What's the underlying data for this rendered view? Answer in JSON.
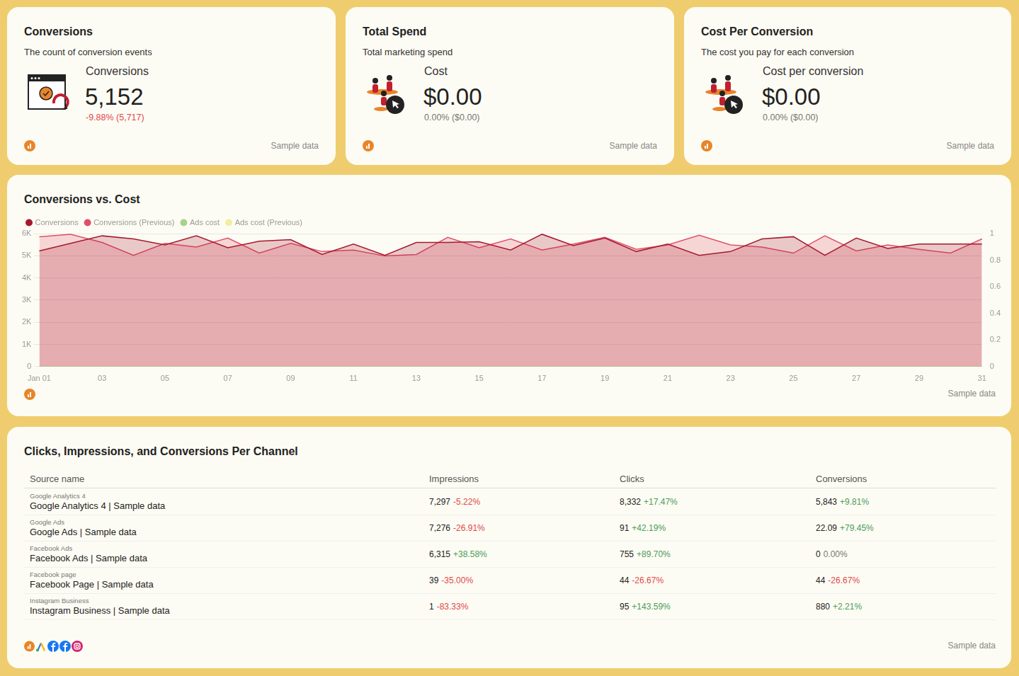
{
  "cards": [
    {
      "title": "Conversions",
      "description": "The count of conversion events",
      "metric_label": "Conversions",
      "value": "5,152",
      "change": "-9.88% (5,717)",
      "footer": "Sample data"
    },
    {
      "title": "Total Spend",
      "description": "Total marketing spend",
      "metric_label": "Cost",
      "value": "$0.00",
      "change": "0.00% ($0.00)",
      "footer": "Sample data"
    },
    {
      "title": "Cost Per Conversion",
      "description": "The cost you pay for each conversion",
      "metric_label": "Cost per conversion",
      "value": "$0.00",
      "change": "0.00% ($0.00)",
      "footer": "Sample data"
    }
  ],
  "chart_panel": {
    "footer": "Sample data"
  },
  "chart_data": {
    "type": "line",
    "title": "Conversions vs. Cost",
    "categories": [
      "Jan 01",
      null,
      "03",
      null,
      "05",
      null,
      "07",
      null,
      "09",
      null,
      "11",
      null,
      "13",
      null,
      "15",
      null,
      "17",
      null,
      "19",
      null,
      "21",
      null,
      "23",
      null,
      "25",
      null,
      "27",
      null,
      "29",
      null,
      "31"
    ],
    "series": [
      {
        "name": "Conversions",
        "color": "#a6192e",
        "type": "area",
        "values": [
          5220,
          5560,
          5900,
          5760,
          5490,
          5900,
          5360,
          5660,
          5730,
          5060,
          5530,
          5020,
          5600,
          5600,
          5630,
          5260,
          5970,
          5460,
          5800,
          5190,
          5530,
          5020,
          5190,
          5760,
          5860,
          5020,
          5800,
          5330,
          5530,
          5530,
          5530
        ]
      },
      {
        "name": "Conversions (Previous)",
        "color": "#e0506a",
        "type": "area",
        "values": [
          5860,
          5970,
          5600,
          5020,
          5560,
          5390,
          5800,
          5120,
          5560,
          5190,
          5260,
          4990,
          5060,
          5830,
          5360,
          5760,
          5260,
          5530,
          5830,
          5290,
          5490,
          5930,
          5490,
          5390,
          5120,
          5900,
          5220,
          5490,
          5290,
          5120,
          5760
        ]
      },
      {
        "name": "Ads cost",
        "color": "#a9d18e",
        "axis": "y2",
        "values": [
          0,
          0,
          0,
          0,
          0,
          0,
          0,
          0,
          0,
          0,
          0,
          0,
          0,
          0,
          0,
          0,
          0,
          0,
          0,
          0,
          0,
          0,
          0,
          0,
          0,
          0,
          0,
          0,
          0,
          0,
          0
        ]
      },
      {
        "name": "Ads cost (Previous)",
        "color": "#f3eea0",
        "axis": "y2",
        "values": [
          0,
          0,
          0,
          0,
          0,
          0,
          0,
          0,
          0,
          0,
          0,
          0,
          0,
          0,
          0,
          0,
          0,
          0,
          0,
          0,
          0,
          0,
          0,
          0,
          0,
          0,
          0,
          0,
          0,
          0,
          0
        ]
      }
    ],
    "ylim": [
      0,
      6000
    ],
    "yticks": [
      0,
      {
        "value": 1000,
        "label": "1K"
      },
      {
        "value": 2000,
        "label": "2K"
      },
      {
        "value": 3000,
        "label": "3K"
      },
      {
        "value": 4000,
        "label": "4K"
      },
      {
        "value": 5000,
        "label": "5K"
      },
      {
        "value": 6000,
        "label": "6K"
      }
    ],
    "y2lim": [
      0,
      1
    ],
    "y2ticks": [
      0,
      0.2,
      0.4,
      0.6,
      0.8,
      1
    ],
    "grid": true,
    "legend": "top-left"
  },
  "table": {
    "title": "Clicks, Impressions, and Conversions Per Channel",
    "columns": [
      "Source name",
      "Impressions",
      "Clicks",
      "Conversions"
    ],
    "rows": [
      {
        "source_type": "Google Analytics 4",
        "source_name": "Google Analytics 4 | Sample data",
        "impressions": "7,297",
        "impressions_change": "-5.22%",
        "clicks": "8,332",
        "clicks_change": "+17.47%",
        "conversions": "5,843",
        "conversions_change": "+9.81%"
      },
      {
        "source_type": "Google Ads",
        "source_name": "Google Ads | Sample data",
        "impressions": "7,276",
        "impressions_change": "-26.91%",
        "clicks": "91",
        "clicks_change": "+42.19%",
        "conversions": "22.09",
        "conversions_change": "+79.45%"
      },
      {
        "source_type": "Facebook Ads",
        "source_name": "Facebook Ads | Sample data",
        "impressions": "6,315",
        "impressions_change": "+38.58%",
        "clicks": "755",
        "clicks_change": "+89.70%",
        "conversions": "0",
        "conversions_change": "0.00%"
      },
      {
        "source_type": "Facebook page",
        "source_name": "Facebook Page | Sample data",
        "impressions": "39",
        "impressions_change": "-35.00%",
        "clicks": "44",
        "clicks_change": "-26.67%",
        "conversions": "44",
        "conversions_change": "-26.67%"
      },
      {
        "source_type": "Instagram Business",
        "source_name": "Instagram Business | Sample data",
        "impressions": "1",
        "impressions_change": "-83.33%",
        "clicks": "95",
        "clicks_change": "+143.59%",
        "conversions": "880",
        "conversions_change": "+2.21%"
      }
    ],
    "footer": "Sample data"
  }
}
